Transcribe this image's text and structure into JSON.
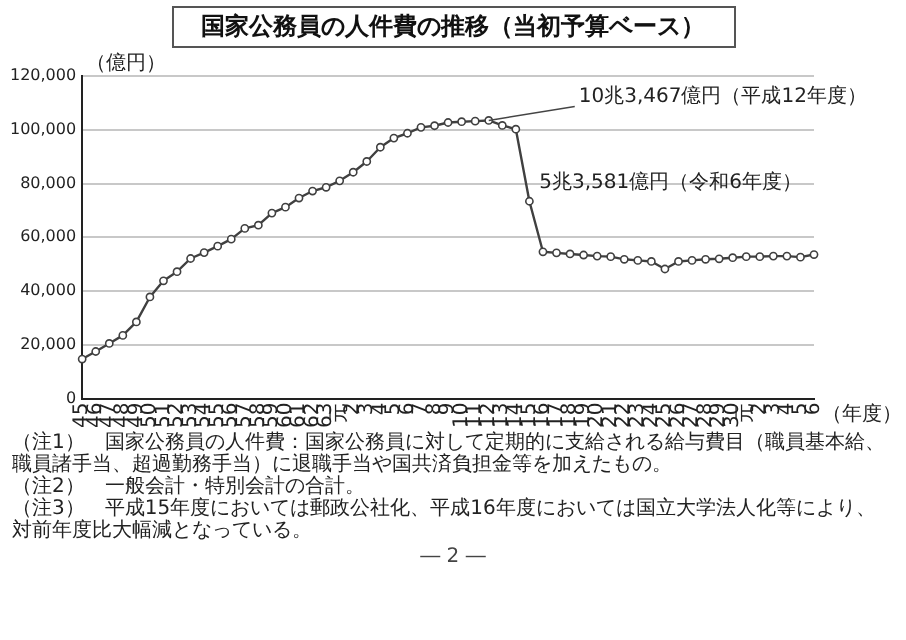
{
  "chart_data": {
    "type": "line",
    "title": "国家公務員の人件費の推移（当初予算ベース）",
    "ylabel": "（億円）",
    "xlabel": "（年度）",
    "categories": [
      "45",
      "46",
      "47",
      "48",
      "49",
      "50",
      "51",
      "52",
      "53",
      "54",
      "55",
      "56",
      "57",
      "58",
      "59",
      "60",
      "61",
      "62",
      "63",
      "元",
      "2",
      "3",
      "4",
      "5",
      "6",
      "7",
      "8",
      "9",
      "10",
      "11",
      "12",
      "13",
      "14",
      "15",
      "16",
      "17",
      "18",
      "19",
      "20",
      "21",
      "22",
      "23",
      "24",
      "25",
      "26",
      "27",
      "28",
      "29",
      "30",
      "元",
      "2",
      "3",
      "4",
      "5",
      "6"
    ],
    "series": [
      {
        "color": "#404040",
        "values": [
          14700,
          17500,
          20500,
          23500,
          28500,
          37800,
          43800,
          47200,
          52100,
          54300,
          56700,
          59300,
          63300,
          64500,
          69000,
          71200,
          74600,
          77200,
          78600,
          81000,
          84200,
          88200,
          93500,
          96900,
          98700,
          100900,
          101500,
          102700,
          103000,
          103200,
          103467,
          101600,
          100200,
          73400,
          54600,
          54200,
          53800,
          53400,
          53000,
          52800,
          51800,
          51400,
          51000,
          48200,
          51000,
          51400,
          51800,
          52000,
          52400,
          52800,
          52800,
          53000,
          53000,
          52600,
          53581
        ]
      }
    ],
    "ylim": [
      0,
      120000
    ],
    "yticks": [
      {
        "value": 0,
        "label": "0"
      },
      {
        "value": 20000,
        "label": "20,000"
      },
      {
        "value": 40000,
        "label": "40,000"
      },
      {
        "value": 60000,
        "label": "60,000"
      },
      {
        "value": 80000,
        "label": "80,000"
      },
      {
        "value": 100000,
        "label": "100,000"
      },
      {
        "value": 120000,
        "label": "120,000"
      }
    ],
    "grid": "y",
    "marker": "circle",
    "line_style": "solid",
    "legend": false,
    "annotations": [
      {
        "text": "10兆3,467億円（平成12年度）",
        "x": "12",
        "y": 103467
      },
      "5兆3,581億円（令和6年度）",
      "（注1）　国家公務員の人件費：国家公務員に対して定期的に支給される給与費目（職員基本給、職員諸手当、超過勤務手当）に退職手当や国共済負担金等を加えたもの。",
      "（注2）　一般会計・特別会計の合計。",
      "（注3）　平成15年度においては郵政公社化、平成16年度においては国立大学法人化等により、対前年度比大幅減となっている。",
      "― 2 ―"
    ]
  }
}
